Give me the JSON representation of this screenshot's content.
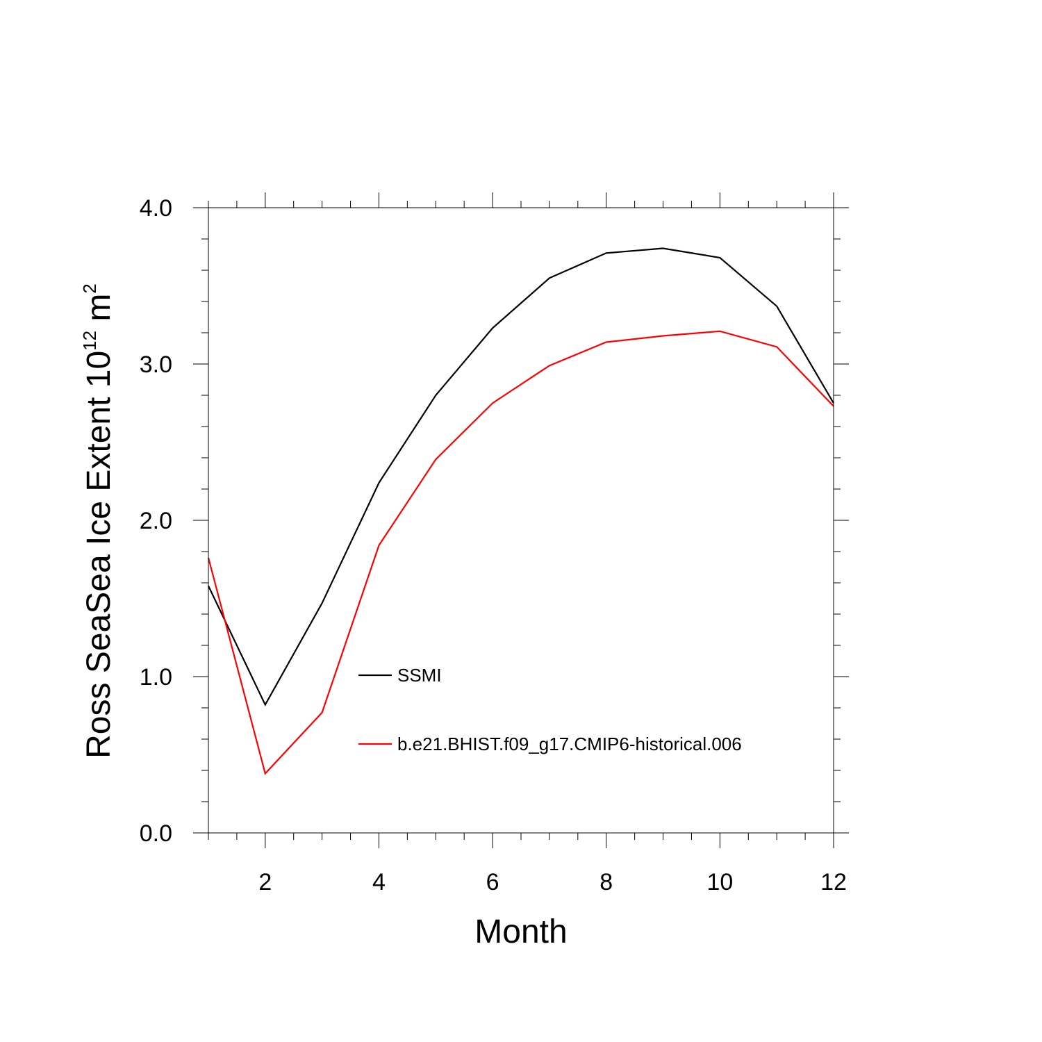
{
  "chart_data": {
    "type": "line",
    "xlabel": "Month",
    "ylabel_main": "Ross SeaSea Ice Extent 10",
    "ylabel_exp": "12",
    "ylabel_unit": " m",
    "ylabel_unit_exp": "2",
    "xlim": [
      1,
      12
    ],
    "ylim": [
      0.0,
      4.0
    ],
    "x_ticks": [
      2,
      4,
      6,
      8,
      10,
      12
    ],
    "x_tick_labels": [
      "2",
      "4",
      "6",
      "8",
      "10",
      "12"
    ],
    "y_ticks": [
      0.0,
      1.0,
      2.0,
      3.0,
      4.0
    ],
    "y_tick_labels": [
      "0.0",
      "1.0",
      "2.0",
      "3.0",
      "4.0"
    ],
    "grid": false,
    "legend_position": "inside-lower-middle",
    "x": [
      1,
      2,
      3,
      4,
      5,
      6,
      7,
      8,
      9,
      10,
      11,
      12
    ],
    "series": [
      {
        "name": "SSMI",
        "color": "#000000",
        "values": [
          1.58,
          0.82,
          1.47,
          2.24,
          2.8,
          3.23,
          3.55,
          3.71,
          3.74,
          3.68,
          3.37,
          2.75
        ]
      },
      {
        "name": "b.e21.BHIST.f09_g17.CMIP6-historical.006",
        "color": "#ff0000",
        "values": [
          1.76,
          0.38,
          0.77,
          1.84,
          2.39,
          2.75,
          2.99,
          3.14,
          3.18,
          3.21,
          3.11,
          2.73
        ]
      }
    ]
  }
}
